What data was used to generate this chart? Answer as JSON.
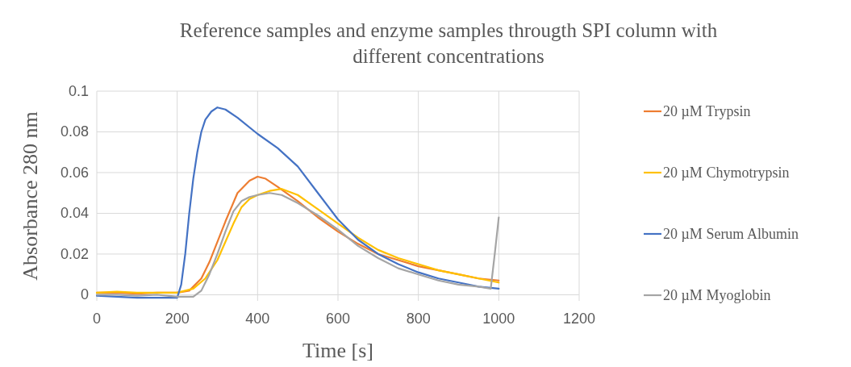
{
  "chart_data": {
    "type": "line",
    "title": "Reference samples and enzyme samples througth SPI column with different concentrations",
    "xlabel": "Time [s]",
    "ylabel": "Absorbance 280 nm",
    "xlim": [
      0,
      1200
    ],
    "xticks": [
      0,
      200,
      400,
      600,
      800,
      1000,
      1200
    ],
    "ylim": [
      -0.003,
      0.1
    ],
    "yticks": [
      0,
      0.02,
      0.04,
      0.06,
      0.08,
      0.1
    ],
    "grid": true,
    "legend": "right",
    "marker": "none",
    "line_style": "solid",
    "series": [
      {
        "name": "20 µM Trypsin",
        "color": "#ed7d31",
        "x": [
          0,
          50,
          100,
          150,
          200,
          230,
          260,
          280,
          300,
          320,
          350,
          380,
          400,
          420,
          450,
          500,
          550,
          600,
          650,
          700,
          750,
          800,
          850,
          900,
          950,
          1000
        ],
        "values": [
          0.001,
          0.001,
          0.0005,
          0.001,
          0.001,
          0.002,
          0.008,
          0.016,
          0.026,
          0.036,
          0.05,
          0.056,
          0.058,
          0.057,
          0.053,
          0.046,
          0.038,
          0.031,
          0.025,
          0.02,
          0.017,
          0.014,
          0.012,
          0.01,
          0.008,
          0.007
        ]
      },
      {
        "name": "20 µM Chymotrypsin",
        "color": "#ffc000",
        "x": [
          0,
          50,
          100,
          150,
          200,
          240,
          270,
          300,
          320,
          340,
          360,
          380,
          400,
          430,
          460,
          500,
          550,
          600,
          650,
          700,
          750,
          800,
          850,
          900,
          950,
          1000
        ],
        "values": [
          0.001,
          0.0015,
          0.001,
          0.001,
          0.001,
          0.003,
          0.008,
          0.017,
          0.026,
          0.035,
          0.043,
          0.047,
          0.049,
          0.051,
          0.052,
          0.049,
          0.042,
          0.035,
          0.028,
          0.022,
          0.018,
          0.015,
          0.012,
          0.01,
          0.008,
          0.006
        ]
      },
      {
        "name": "20 µM Serum Albumin",
        "color": "#4472c4",
        "x": [
          0,
          50,
          100,
          150,
          200,
          210,
          220,
          230,
          240,
          250,
          260,
          270,
          285,
          300,
          320,
          350,
          400,
          450,
          500,
          550,
          600,
          650,
          700,
          750,
          800,
          850,
          900,
          950,
          1000
        ],
        "values": [
          -0.0005,
          -0.001,
          -0.0015,
          -0.0015,
          -0.0015,
          0.005,
          0.02,
          0.04,
          0.057,
          0.07,
          0.08,
          0.086,
          0.09,
          0.092,
          0.091,
          0.087,
          0.079,
          0.072,
          0.063,
          0.05,
          0.037,
          0.027,
          0.02,
          0.015,
          0.011,
          0.008,
          0.006,
          0.004,
          0.003
        ]
      },
      {
        "name": "20 µM Myoglobin",
        "color": "#a5a5a5",
        "x": [
          0,
          50,
          100,
          150,
          200,
          240,
          260,
          280,
          300,
          320,
          340,
          360,
          380,
          400,
          430,
          460,
          500,
          550,
          600,
          650,
          700,
          750,
          800,
          850,
          900,
          950,
          980,
          990,
          1000
        ],
        "values": [
          0,
          0,
          -0.0005,
          0,
          -0.001,
          -0.001,
          0.002,
          0.01,
          0.02,
          0.031,
          0.041,
          0.046,
          0.048,
          0.049,
          0.05,
          0.049,
          0.045,
          0.039,
          0.032,
          0.024,
          0.018,
          0.013,
          0.01,
          0.007,
          0.005,
          0.004,
          0.003,
          0.02,
          0.038
        ]
      }
    ]
  }
}
